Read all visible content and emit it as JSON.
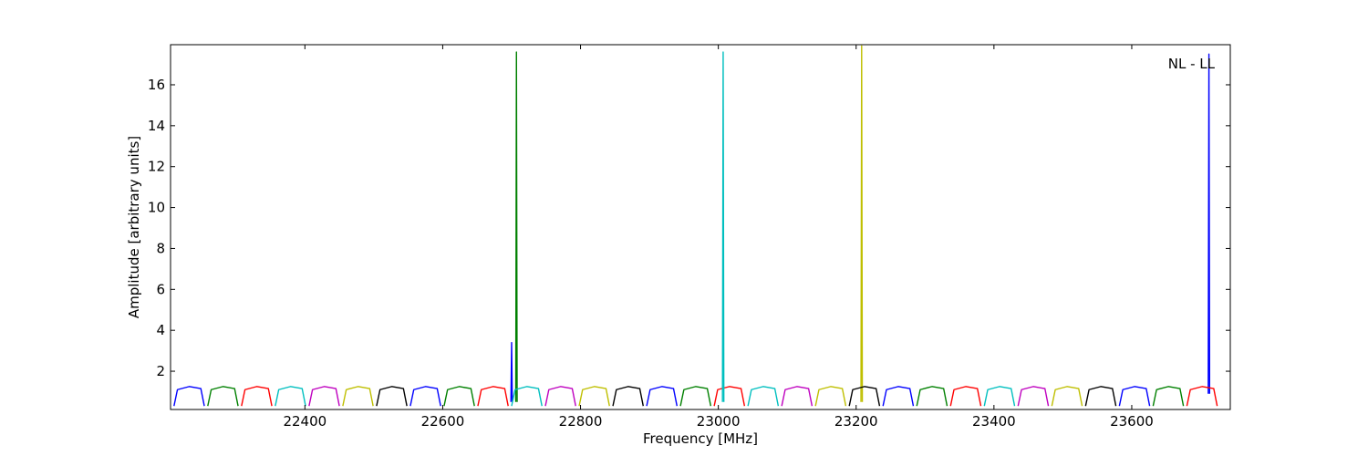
{
  "chart_data": {
    "type": "line",
    "xlabel": "Frequency [MHz]",
    "ylabel": "Amplitude [arbitrary units]",
    "annotation": "NL - LL",
    "xlim": [
      22205,
      23743
    ],
    "ylim": [
      0.13,
      17.96
    ],
    "xticks": [
      22400,
      22600,
      22800,
      23000,
      23200,
      23400,
      23600
    ],
    "yticks": [
      2,
      4,
      6,
      8,
      10,
      12,
      14,
      16
    ],
    "series": [
      {
        "color": "#0000ff",
        "x": [
          22210,
          22215,
          22232,
          22249,
          22254,
          22255,
          22553,
          22558,
          22575,
          22592,
          22597,
          22598,
          22699,
          22700,
          22701,
          22702,
          22896,
          22901,
          22918,
          22935,
          22940,
          22941,
          23239,
          23244,
          23261,
          23278,
          23283,
          23284,
          23582,
          23587,
          23604,
          23621,
          23626,
          23627,
          23711,
          23712,
          23713
        ],
        "values": [
          0.3,
          1.1,
          1.25,
          1.15,
          0.3,
          null,
          0.3,
          1.1,
          1.25,
          1.15,
          0.3,
          null,
          0.5,
          3.4,
          0.5,
          null,
          0.3,
          1.1,
          1.25,
          1.15,
          0.3,
          null,
          0.3,
          1.1,
          1.25,
          1.15,
          0.3,
          null,
          0.3,
          1.1,
          1.25,
          1.15,
          0.3,
          null,
          0.9,
          17.5,
          0.9
        ]
      },
      {
        "color": "#008000",
        "x": [
          22259,
          22264,
          22281,
          22298,
          22303,
          22304,
          22602,
          22607,
          22624,
          22641,
          22646,
          22647,
          22706,
          22707,
          22708,
          22709,
          22945,
          22950,
          22967,
          22984,
          22989,
          22990,
          23288,
          23293,
          23310,
          23327,
          23332,
          23333,
          23631,
          23636,
          23653,
          23670,
          23675
        ],
        "values": [
          0.3,
          1.1,
          1.25,
          1.15,
          0.3,
          null,
          0.3,
          1.1,
          1.25,
          1.15,
          0.3,
          null,
          0.5,
          17.6,
          0.5,
          null,
          0.3,
          1.1,
          1.25,
          1.15,
          0.3,
          null,
          0.3,
          1.1,
          1.25,
          1.15,
          0.3,
          null,
          0.3,
          1.1,
          1.25,
          1.15,
          0.3
        ]
      },
      {
        "color": "#ff0000",
        "x": [
          22308,
          22313,
          22330,
          22347,
          22352,
          22353,
          22651,
          22656,
          22673,
          22690,
          22695,
          22696,
          22994,
          22999,
          23016,
          23033,
          23038,
          23039,
          23337,
          23342,
          23359,
          23376,
          23381,
          23382,
          23680,
          23685,
          23702,
          23719,
          23724
        ],
        "values": [
          0.3,
          1.1,
          1.25,
          1.15,
          0.3,
          null,
          0.3,
          1.1,
          1.25,
          1.15,
          0.3,
          null,
          0.3,
          1.1,
          1.25,
          1.15,
          0.3,
          null,
          0.3,
          1.1,
          1.25,
          1.15,
          0.3,
          null,
          0.3,
          1.1,
          1.25,
          1.15,
          0.3
        ]
      },
      {
        "color": "#00bfbf",
        "x": [
          22357,
          22362,
          22379,
          22396,
          22401,
          22402,
          22700,
          22705,
          22722,
          22739,
          22744,
          22745,
          23006,
          23007,
          23008,
          23009,
          23043,
          23048,
          23065,
          23082,
          23087,
          23088,
          23386,
          23391,
          23408,
          23425,
          23430
        ],
        "values": [
          0.3,
          1.1,
          1.25,
          1.15,
          0.3,
          null,
          0.3,
          1.1,
          1.25,
          1.15,
          0.3,
          null,
          0.5,
          17.6,
          0.5,
          null,
          0.3,
          1.1,
          1.25,
          1.15,
          0.3,
          null,
          0.3,
          1.1,
          1.25,
          1.15,
          0.3
        ]
      },
      {
        "color": "#bf00bf",
        "x": [
          22406,
          22411,
          22428,
          22445,
          22450,
          22451,
          22749,
          22754,
          22771,
          22788,
          22793,
          22794,
          23092,
          23097,
          23114,
          23131,
          23136,
          23137,
          23435,
          23440,
          23457,
          23474,
          23479
        ],
        "values": [
          0.3,
          1.1,
          1.25,
          1.15,
          0.3,
          null,
          0.3,
          1.1,
          1.25,
          1.15,
          0.3,
          null,
          0.3,
          1.1,
          1.25,
          1.15,
          0.3,
          null,
          0.3,
          1.1,
          1.25,
          1.15,
          0.3
        ]
      },
      {
        "color": "#bfbf00",
        "x": [
          22455,
          22460,
          22477,
          22494,
          22499,
          22500,
          22798,
          22803,
          22820,
          22837,
          22842,
          22843,
          23141,
          23146,
          23163,
          23180,
          23185,
          23186,
          23207,
          23208,
          23209,
          23210,
          23484,
          23489,
          23506,
          23523,
          23528
        ],
        "values": [
          0.3,
          1.1,
          1.25,
          1.15,
          0.3,
          null,
          0.3,
          1.1,
          1.25,
          1.15,
          0.3,
          null,
          0.3,
          1.1,
          1.25,
          1.15,
          0.3,
          null,
          0.5,
          17.9,
          0.5,
          null,
          0.3,
          1.1,
          1.25,
          1.15,
          0.3
        ]
      },
      {
        "color": "#000000",
        "x": [
          22504,
          22509,
          22526,
          22543,
          22548,
          22549,
          22847,
          22852,
          22869,
          22886,
          22891,
          22892,
          23190,
          23195,
          23212,
          23229,
          23234,
          23235,
          23533,
          23538,
          23555,
          23572,
          23577
        ],
        "values": [
          0.3,
          1.1,
          1.25,
          1.15,
          0.3,
          null,
          0.3,
          1.1,
          1.25,
          1.15,
          0.3,
          null,
          0.3,
          1.1,
          1.25,
          1.15,
          0.3,
          null,
          0.3,
          1.1,
          1.25,
          1.15,
          0.3
        ]
      }
    ]
  }
}
